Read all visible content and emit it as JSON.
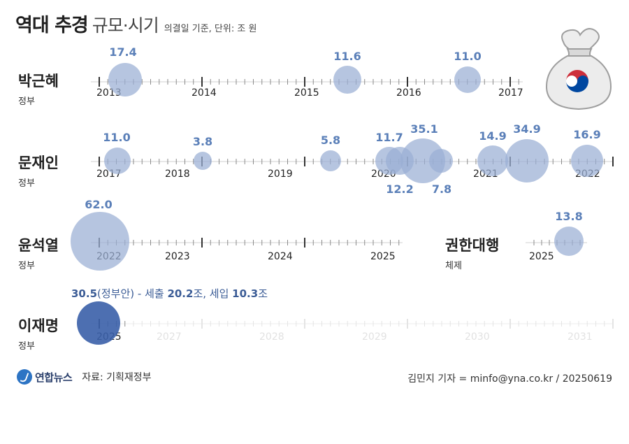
{
  "title": {
    "main": "역대 추경",
    "sub": "규모·시기",
    "note": "의결일 기준, 단위: 조 원"
  },
  "source": {
    "logo_text": "연합뉴스",
    "text": "자료: 기획재정부"
  },
  "credit": "김민지 기자 = minfo@yna.co.kr / 20250619",
  "colors": {
    "bubble": "#9aaed4",
    "bubble_dark": "#3a5fa8",
    "value_text": "#5a7fb8"
  },
  "icon": "money-bag-with-taegeuk-icon",
  "chart_data": [
    {
      "type": "bubble",
      "row_name": "박근혜",
      "row_sub": "정부",
      "years": [
        "2013",
        "2014",
        "2015",
        "2016",
        "2017"
      ],
      "x": [
        "2013-05-07",
        "2015-07-24",
        "2016-09-02"
      ],
      "values": [
        17.4,
        11.6,
        11.0
      ],
      "value_labels": [
        "17.4",
        "11.6",
        "11.0"
      ]
    },
    {
      "type": "bubble",
      "row_name": "문재인",
      "row_sub": "정부",
      "years": [
        "2017",
        "2018",
        "2019",
        "2020",
        "2021",
        "2022"
      ],
      "x": [
        "2017-07-22",
        "2018-05-21",
        "2019-08-02",
        "2020-03-17",
        "2020-04-30",
        "2020-07-03",
        "2020-09-22",
        "2021-03-25",
        "2021-07-24",
        "2022-02-21"
      ],
      "values": [
        11.0,
        3.8,
        5.8,
        11.7,
        12.2,
        35.1,
        7.8,
        14.9,
        34.9,
        16.9
      ],
      "value_labels": [
        "11.0",
        "3.8",
        "5.8",
        "11.7",
        "12.2",
        "35.1",
        "7.8",
        "14.9",
        "34.9",
        "16.9"
      ]
    },
    {
      "type": "bubble",
      "row_name": "윤석열",
      "row_sub": "정부",
      "years": [
        "2022",
        "2023",
        "2024",
        "2025"
      ],
      "x": [
        "2022-05-29"
      ],
      "values": [
        62.0
      ],
      "value_labels": [
        "62.0"
      ]
    },
    {
      "type": "bubble",
      "row_name": "권한대행",
      "row_sub": "체제",
      "years": [
        "2025"
      ],
      "x": [
        "2025-05-01"
      ],
      "values": [
        13.8
      ],
      "value_labels": [
        "13.8"
      ]
    },
    {
      "type": "bubble",
      "row_name": "이재명",
      "row_sub": "정부",
      "years": [
        "2025",
        "2027",
        "2028",
        "2029",
        "2030",
        "2031"
      ],
      "faint_years": [
        "2027",
        "2028",
        "2029",
        "2030",
        "2031"
      ],
      "x": [
        "2025-06-19"
      ],
      "values": [
        30.5
      ],
      "annotation": {
        "amount": "30.5",
        "suffix": "(정부안) - 세출 ",
        "expenditure": "20.2",
        "unit1": "조, 세입 ",
        "revenue": "10.3",
        "unit2": "조"
      }
    }
  ]
}
